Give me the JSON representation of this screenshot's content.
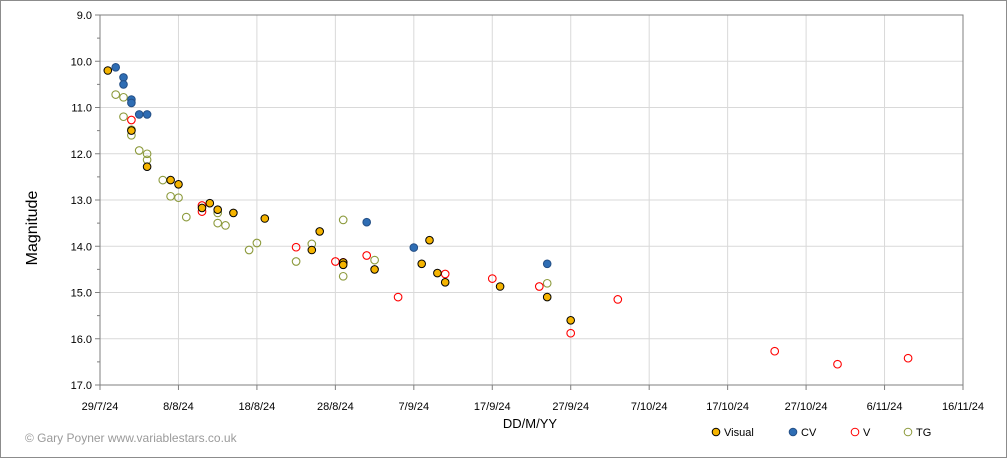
{
  "chart_data": {
    "type": "scatter",
    "xlabel": "DD/M/YY",
    "ylabel": "Magnitude",
    "y_inverted": true,
    "ylim": [
      9.0,
      17.0
    ],
    "xlim": [
      "2024-07-29",
      "2024-11-16"
    ],
    "x_ticks": [
      "29/7/24",
      "8/8/24",
      "18/8/24",
      "28/8/24",
      "7/9/24",
      "17/9/24",
      "27/9/24",
      "7/10/24",
      "17/10/24",
      "27/10/24",
      "6/11/24",
      "16/11/24"
    ],
    "y_ticks": [
      "9.0",
      "10.0",
      "11.0",
      "12.0",
      "13.0",
      "14.0",
      "15.0",
      "16.0",
      "17.0"
    ],
    "grid": true,
    "legend_position": "bottom-right",
    "credit": "© Gary Poyner www.variablestars.co.uk",
    "series": [
      {
        "name": "Visual",
        "marker": "filled-circle",
        "color": "#f5b400",
        "edge": "#000000",
        "points": [
          [
            "2024-07-30",
            10.2
          ],
          [
            "2024-08-02",
            11.5
          ],
          [
            "2024-08-04",
            12.28
          ],
          [
            "2024-08-07",
            12.57
          ],
          [
            "2024-08-08",
            12.66
          ],
          [
            "2024-08-11",
            13.17
          ],
          [
            "2024-08-12",
            13.07
          ],
          [
            "2024-08-13",
            13.21
          ],
          [
            "2024-08-15",
            13.28
          ],
          [
            "2024-08-19",
            13.4
          ],
          [
            "2024-08-25",
            14.08
          ],
          [
            "2024-08-26",
            13.68
          ],
          [
            "2024-08-29",
            14.35
          ],
          [
            "2024-08-29",
            14.4
          ],
          [
            "2024-09-02",
            14.5
          ],
          [
            "2024-09-08",
            14.38
          ],
          [
            "2024-09-09",
            13.87
          ],
          [
            "2024-09-10",
            14.58
          ],
          [
            "2024-09-11",
            14.78
          ],
          [
            "2024-09-18",
            14.87
          ],
          [
            "2024-09-24",
            15.1
          ],
          [
            "2024-09-27",
            15.6
          ]
        ]
      },
      {
        "name": "CV",
        "marker": "filled-circle",
        "color": "#2e6db4",
        "edge": "#244f86",
        "points": [
          [
            "2024-07-31",
            10.13
          ],
          [
            "2024-08-01",
            10.35
          ],
          [
            "2024-08-01",
            10.5
          ],
          [
            "2024-08-02",
            10.83
          ],
          [
            "2024-08-02",
            10.9
          ],
          [
            "2024-08-03",
            11.15
          ],
          [
            "2024-08-04",
            11.15
          ],
          [
            "2024-09-01",
            13.48
          ],
          [
            "2024-09-07",
            14.03
          ],
          [
            "2024-09-24",
            14.38
          ]
        ]
      },
      {
        "name": "V",
        "marker": "open-circle",
        "color": "#ff0000",
        "points": [
          [
            "2024-08-02",
            11.27
          ],
          [
            "2024-08-11",
            13.12
          ],
          [
            "2024-08-11",
            13.25
          ],
          [
            "2024-08-23",
            14.02
          ],
          [
            "2024-08-28",
            14.33
          ],
          [
            "2024-08-29",
            14.35
          ],
          [
            "2024-09-01",
            14.2
          ],
          [
            "2024-09-05",
            15.1
          ],
          [
            "2024-09-11",
            14.6
          ],
          [
            "2024-09-17",
            14.7
          ],
          [
            "2024-09-23",
            14.87
          ],
          [
            "2024-09-27",
            15.88
          ],
          [
            "2024-10-03",
            15.15
          ],
          [
            "2024-10-23",
            16.27
          ],
          [
            "2024-10-31",
            16.55
          ],
          [
            "2024-11-09",
            16.42
          ]
        ]
      },
      {
        "name": "TG",
        "marker": "open-circle",
        "color": "#8c9a3c",
        "points": [
          [
            "2024-07-31",
            10.72
          ],
          [
            "2024-08-01",
            10.78
          ],
          [
            "2024-08-01",
            11.2
          ],
          [
            "2024-08-02",
            11.48
          ],
          [
            "2024-08-02",
            11.6
          ],
          [
            "2024-08-03",
            11.93
          ],
          [
            "2024-08-04",
            12.0
          ],
          [
            "2024-08-04",
            12.13
          ],
          [
            "2024-08-06",
            12.57
          ],
          [
            "2024-08-07",
            12.92
          ],
          [
            "2024-08-08",
            12.95
          ],
          [
            "2024-08-09",
            13.37
          ],
          [
            "2024-08-13",
            13.28
          ],
          [
            "2024-08-13",
            13.5
          ],
          [
            "2024-08-14",
            13.55
          ],
          [
            "2024-08-17",
            14.08
          ],
          [
            "2024-08-18",
            13.93
          ],
          [
            "2024-08-23",
            14.33
          ],
          [
            "2024-08-25",
            13.95
          ],
          [
            "2024-08-29",
            13.43
          ],
          [
            "2024-08-29",
            14.65
          ],
          [
            "2024-09-02",
            14.3
          ],
          [
            "2024-09-24",
            14.8
          ]
        ]
      }
    ]
  }
}
